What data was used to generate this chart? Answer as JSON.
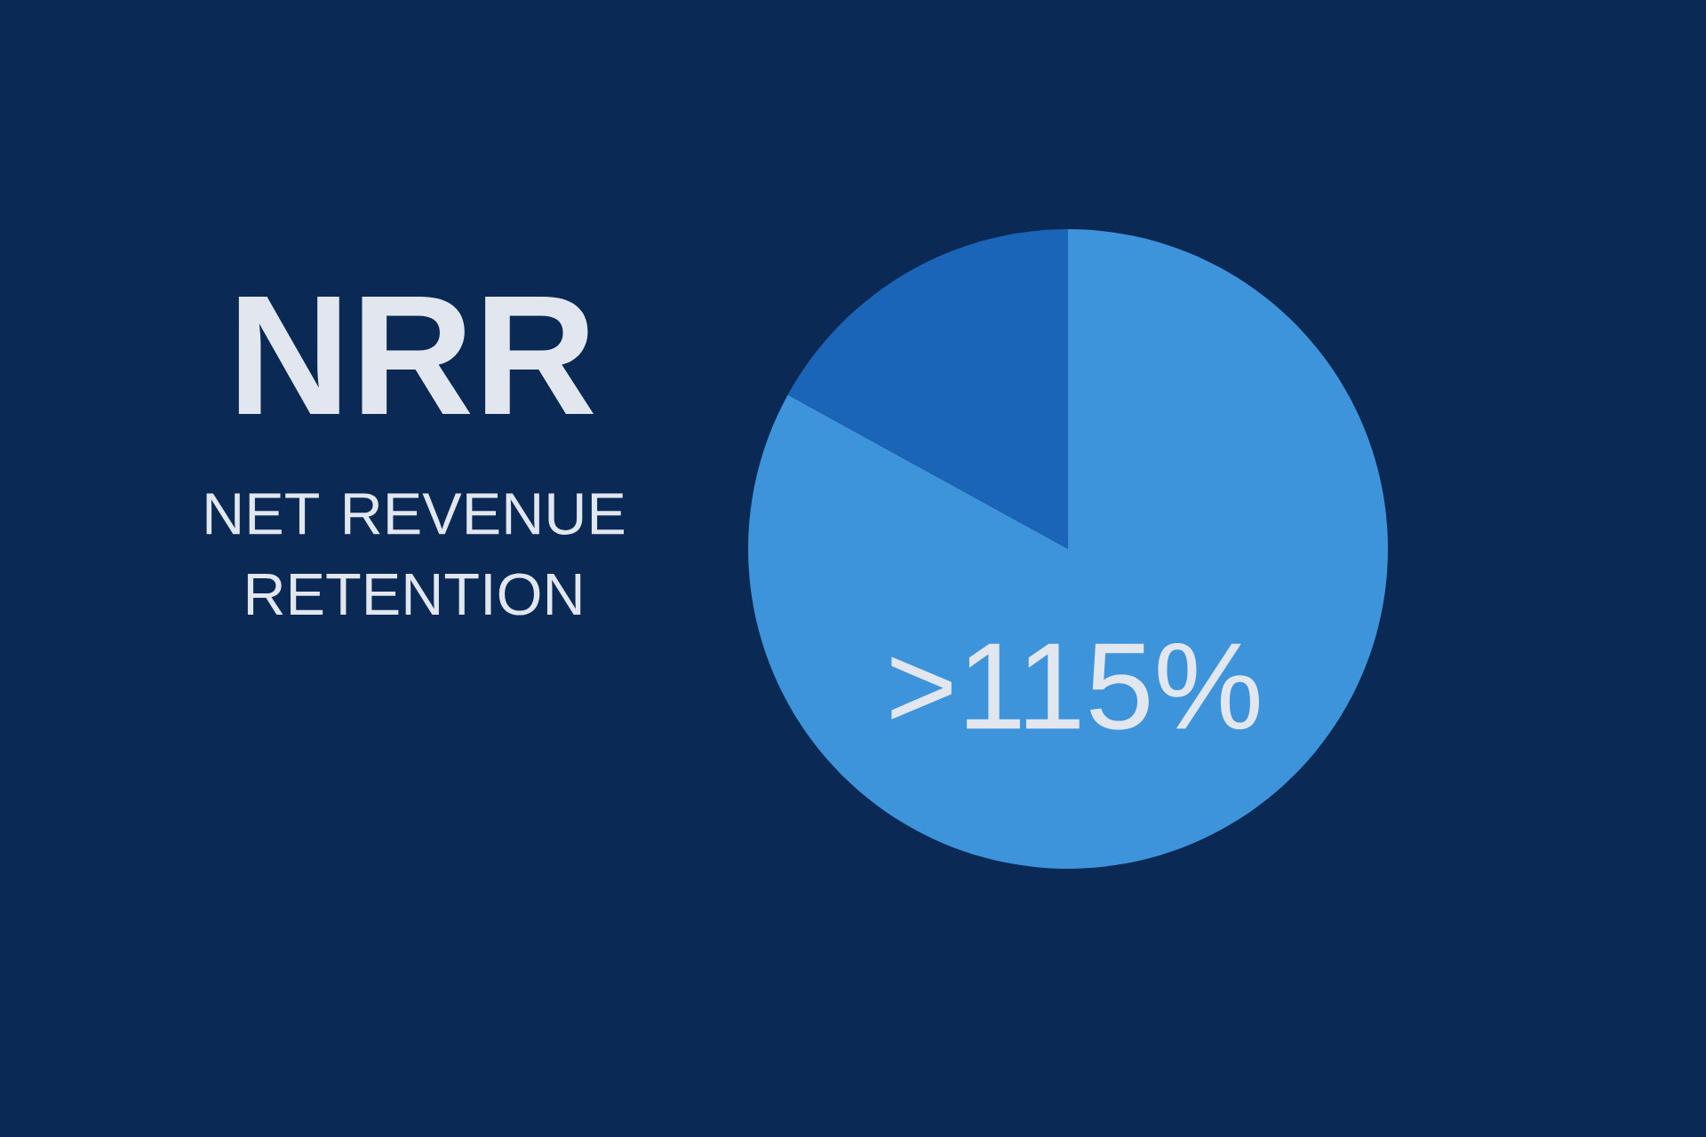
{
  "chart_data": {
    "type": "pie",
    "title": "NRR",
    "subtitle": "NET REVENUE RETENTION",
    "categories": [
      null,
      null
    ],
    "values": [
      17,
      83
    ],
    "colors": [
      "#1a65b8",
      "#3d94db"
    ],
    "annotations": [
      ">115%"
    ]
  }
}
